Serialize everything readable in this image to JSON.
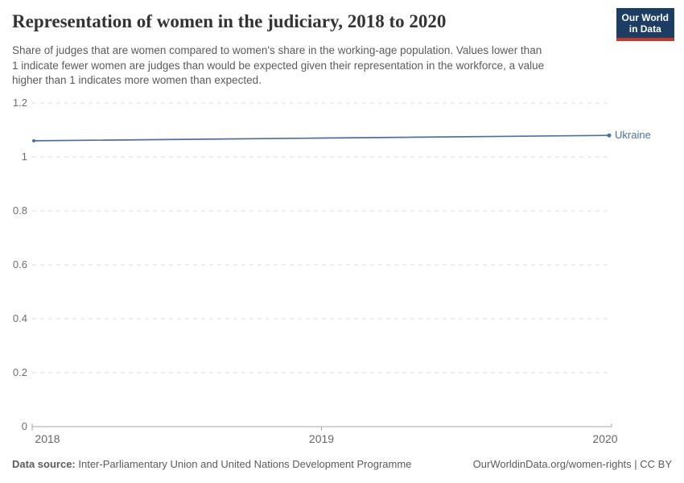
{
  "header": {
    "title": "Representation of women in the judiciary, 2018 to 2020",
    "subtitle_lines": [
      "Share of judges that are women compared to women's share in the working-age population. Values lower than",
      "1 indicate fewer women are judges than would be expected given their representation in the workforce, a value",
      "higher than 1 indicates more women than expected."
    ],
    "logo": {
      "line1": "Our World",
      "line2": "in Data"
    }
  },
  "chart_data": {
    "type": "line",
    "title": "Representation of women in the judiciary, 2018 to 2020",
    "x": [
      2018,
      2019,
      2020
    ],
    "x_tick_labels": [
      "2018",
      "2019",
      "2020"
    ],
    "series": [
      {
        "name": "Ukraine",
        "color": "#4C6FA5",
        "values": [
          1.06,
          1.07,
          1.08
        ]
      }
    ],
    "ylim": [
      0,
      1.2
    ],
    "y_ticks": [
      0,
      0.2,
      0.4,
      0.6,
      0.8,
      1,
      1.2
    ],
    "y_tick_labels": [
      "0",
      "0.2",
      "0.4",
      "0.6",
      "0.8",
      "1",
      "1.2"
    ],
    "grid": "horizontal-dashed",
    "legend": "inline-end-label"
  },
  "footer": {
    "source_label": "Data source:",
    "source_text": "Inter-Parliamentary Union and United Nations Development Programme",
    "link": "OurWorldinData.org/women-rights | CC BY"
  },
  "colors": {
    "line": "#4C6FA5",
    "logo_bg": "#1D3D63",
    "logo_stripe": "#C0392B",
    "grid": "#DCDCDC",
    "axis": "#A5A5A5",
    "muted_text": "#5B5B5B"
  }
}
